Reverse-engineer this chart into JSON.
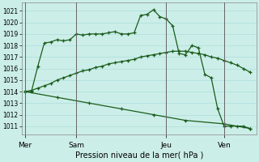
{
  "background_color": "#cceee8",
  "grid_color": "#aadddd",
  "line_color": "#1a5c1a",
  "ylabel_ticks": [
    1011,
    1012,
    1013,
    1014,
    1015,
    1016,
    1017,
    1018,
    1019,
    1020,
    1021
  ],
  "ylim": [
    1010.3,
    1021.7
  ],
  "xlabel": "Pression niveau de la mer( hPa )",
  "day_labels": [
    "Mer",
    "Sam",
    "Jeu",
    "Ven"
  ],
  "day_positions": [
    0,
    8,
    22,
    31
  ],
  "xlim": [
    -0.5,
    36
  ],
  "vline_color": "#666666",
  "line1_x": [
    0,
    1,
    2,
    3,
    4,
    5,
    6,
    7,
    8,
    9,
    10,
    11,
    12,
    13,
    14,
    15,
    16,
    17,
    18,
    19,
    20,
    21,
    22,
    23,
    24,
    25,
    26,
    27,
    28,
    29,
    30,
    31,
    32,
    33,
    34,
    35
  ],
  "line1_y": [
    1014.0,
    1014.0,
    1016.2,
    1018.2,
    1018.3,
    1018.5,
    1018.4,
    1018.5,
    1019.0,
    1018.9,
    1019.0,
    1019.0,
    1019.0,
    1019.1,
    1019.2,
    1019.0,
    1019.0,
    1019.1,
    1020.6,
    1020.7,
    1021.1,
    1020.5,
    1020.3,
    1019.7,
    1017.3,
    1017.2,
    1018.0,
    1017.8,
    1015.5,
    1015.2,
    1012.5,
    1011.0,
    1011.0,
    1011.0,
    1011.0,
    1010.8
  ],
  "line2_x": [
    0,
    1,
    2,
    3,
    4,
    5,
    6,
    7,
    8,
    9,
    10,
    11,
    12,
    13,
    14,
    15,
    16,
    17,
    18,
    19,
    20,
    21,
    22,
    23,
    24,
    25,
    26,
    27,
    28,
    29,
    30,
    31,
    32,
    33,
    34,
    35
  ],
  "line2_y": [
    1014.0,
    1014.1,
    1014.3,
    1014.5,
    1014.7,
    1015.0,
    1015.2,
    1015.4,
    1015.6,
    1015.8,
    1015.9,
    1016.1,
    1016.2,
    1016.4,
    1016.5,
    1016.6,
    1016.7,
    1016.8,
    1017.0,
    1017.1,
    1017.2,
    1017.3,
    1017.4,
    1017.5,
    1017.5,
    1017.5,
    1017.4,
    1017.3,
    1017.2,
    1017.0,
    1016.9,
    1016.7,
    1016.5,
    1016.3,
    1016.0,
    1015.7
  ],
  "line3_x": [
    0,
    5,
    10,
    15,
    20,
    25,
    31,
    35
  ],
  "line3_y": [
    1014.0,
    1013.5,
    1013.0,
    1012.5,
    1012.0,
    1011.5,
    1011.2,
    1010.8
  ]
}
